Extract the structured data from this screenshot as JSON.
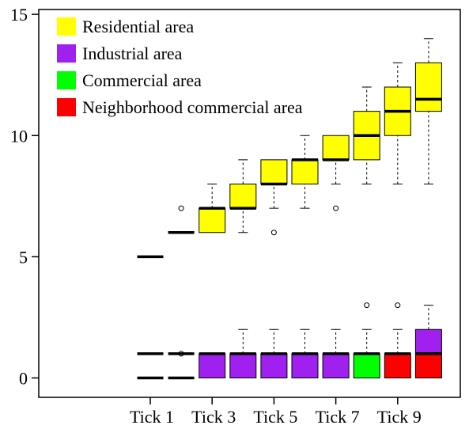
{
  "chart_data": {
    "type": "boxplot",
    "ylim": [
      -0.8,
      15.2
    ],
    "y_ticks": [
      0,
      5,
      10,
      15
    ],
    "x_tick_labels": [
      {
        "position": 4,
        "label": "Tick 1"
      },
      {
        "position": 6,
        "label": "Tick 3"
      },
      {
        "position": 8,
        "label": "Tick 5"
      },
      {
        "position": 10,
        "label": "Tick 7"
      },
      {
        "position": 12,
        "label": "Tick 9"
      }
    ],
    "legend": {
      "placement": "top-left",
      "entries": [
        {
          "label": "Residential area",
          "color": "#ffff00"
        },
        {
          "label": "Industrial area",
          "color": "#a020f0"
        },
        {
          "label": "Commercial area",
          "color": "#00ff00"
        },
        {
          "label": "Neighborhood commercial area",
          "color": "#ff0000"
        }
      ]
    },
    "series": [
      {
        "name": "Residential area",
        "color": "#ffff00",
        "boxes": [
          {
            "position": 4,
            "min": 5,
            "q1": 5,
            "median": 5,
            "q3": 5,
            "max": 5,
            "outliers": []
          },
          {
            "position": 5,
            "min": 6,
            "q1": 6,
            "median": 6,
            "q3": 6,
            "max": 6,
            "outliers": [
              7
            ]
          },
          {
            "position": 6,
            "min": 6,
            "q1": 6,
            "median": 7,
            "q3": 7,
            "max": 8,
            "outliers": []
          },
          {
            "position": 7,
            "min": 6,
            "q1": 7,
            "median": 7,
            "q3": 8,
            "max": 9,
            "outliers": []
          },
          {
            "position": 8,
            "min": 7,
            "q1": 8,
            "median": 8,
            "q3": 9,
            "max": 9,
            "outliers": [
              6
            ]
          },
          {
            "position": 9,
            "min": 7,
            "q1": 8,
            "median": 9,
            "q3": 9,
            "max": 10,
            "outliers": []
          },
          {
            "position": 10,
            "min": 8,
            "q1": 9,
            "median": 9,
            "q3": 10,
            "max": 10,
            "outliers": [
              7
            ]
          },
          {
            "position": 11,
            "min": 8,
            "q1": 9,
            "median": 10,
            "q3": 11,
            "max": 12,
            "outliers": []
          },
          {
            "position": 12,
            "min": 8,
            "q1": 10,
            "median": 11,
            "q3": 12,
            "max": 13,
            "outliers": []
          },
          {
            "position": 13,
            "min": 8,
            "q1": 11,
            "median": 11.5,
            "q3": 13,
            "max": 14,
            "outliers": []
          }
        ]
      },
      {
        "name": "Industrial area",
        "color": "#a020f0",
        "boxes": [
          {
            "position": 4,
            "min": 1,
            "q1": 1,
            "median": 1,
            "q3": 1,
            "max": 1,
            "outliers": []
          },
          {
            "position": 5,
            "min": 1,
            "q1": 1,
            "median": 1,
            "q3": 1,
            "max": 1,
            "outliers": []
          },
          {
            "position": 6,
            "min": 0,
            "q1": 0,
            "median": 1,
            "q3": 1,
            "max": 1,
            "outliers": []
          },
          {
            "position": 7,
            "min": 0,
            "q1": 0,
            "median": 1,
            "q3": 1,
            "max": 2,
            "outliers": []
          },
          {
            "position": 8,
            "min": 0,
            "q1": 0,
            "median": 1,
            "q3": 1,
            "max": 2,
            "outliers": []
          },
          {
            "position": 9,
            "min": 0,
            "q1": 0,
            "median": 1,
            "q3": 1,
            "max": 2,
            "outliers": []
          },
          {
            "position": 10,
            "min": 0,
            "q1": 0,
            "median": 1,
            "q3": 1,
            "max": 2,
            "outliers": []
          },
          {
            "position": 13,
            "min": 0,
            "q1": 1,
            "median": 1,
            "q3": 2,
            "max": 3,
            "outliers": []
          }
        ]
      },
      {
        "name": "Commercial area",
        "color": "#00ff00",
        "boxes": [
          {
            "position": 11,
            "min": 0,
            "q1": 0,
            "median": 1,
            "q3": 1,
            "max": 2,
            "outliers": [
              3
            ]
          }
        ]
      },
      {
        "name": "Neighborhood commercial area",
        "color": "#ff0000",
        "boxes": [
          {
            "position": 4,
            "min": 0,
            "q1": 0,
            "median": 0,
            "q3": 0,
            "max": 0,
            "outliers": []
          },
          {
            "position": 5,
            "min": 0,
            "q1": 0,
            "median": 0,
            "q3": 0,
            "max": 0,
            "outliers": [
              1
            ]
          },
          {
            "position": 12,
            "min": 0,
            "q1": 0,
            "median": 1,
            "q3": 1,
            "max": 2,
            "outliers": [
              3
            ]
          },
          {
            "position": 13,
            "min": 0,
            "q1": 0,
            "median": 1,
            "q3": 1,
            "max": 1,
            "outliers": []
          }
        ]
      }
    ]
  }
}
